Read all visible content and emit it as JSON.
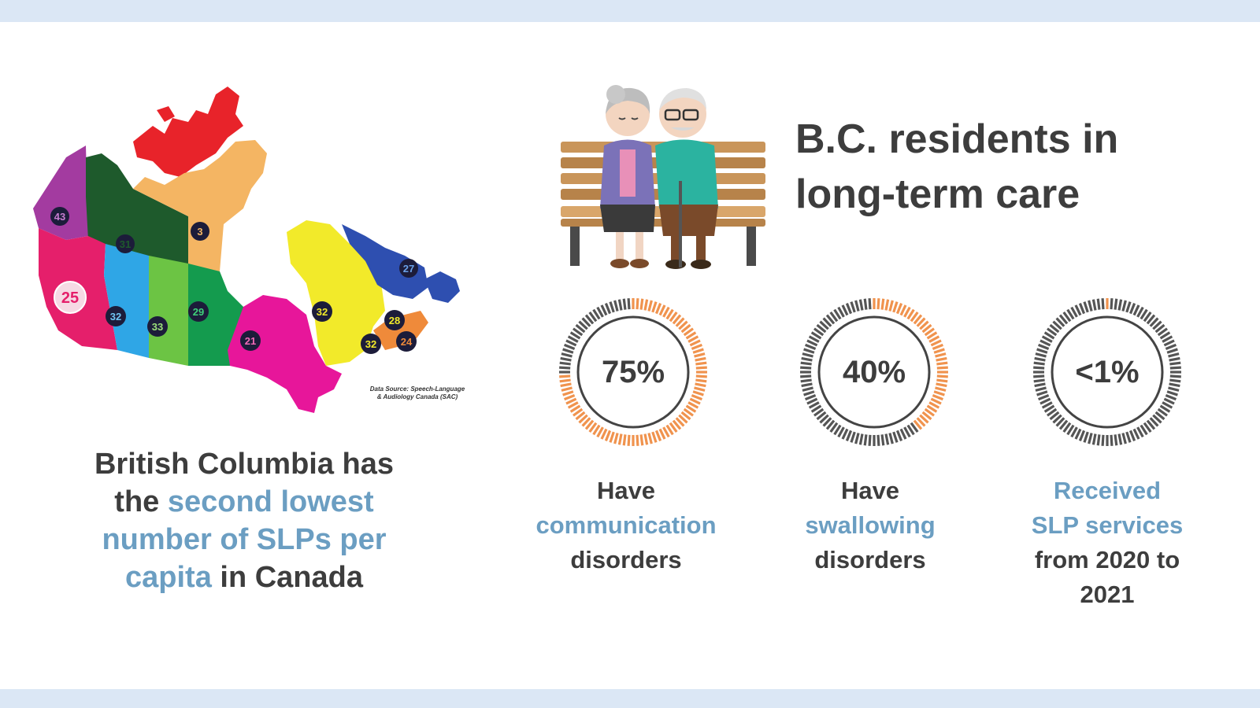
{
  "colors": {
    "band": "#dbe7f5",
    "accent_blue": "#6b9ec2",
    "ring_orange": "#f0934e",
    "ring_gray": "#555555",
    "text": "#3d3d3d"
  },
  "map": {
    "labels": [
      "43",
      "31",
      "3",
      "27",
      "25",
      "32",
      "33",
      "29",
      "21",
      "32",
      "28",
      "32",
      "24"
    ],
    "source_line1": "Data Source: Speech-Language",
    "source_line2": "& Audiology Canada (SAC)"
  },
  "bc_statement": {
    "part1": "British Columbia has",
    "part2": "the ",
    "highlight1": "second lowest",
    "highlight2": "number of SLPs per",
    "highlight3": "capita",
    "part3": " in Canada"
  },
  "heading": {
    "line1": "B.C. residents in",
    "line2": "long-term care"
  },
  "stats": [
    {
      "value_text": "75%",
      "fraction": 0.75,
      "line1": "Have",
      "highlight": "communication",
      "line3": "disorders"
    },
    {
      "value_text": "40%",
      "fraction": 0.4,
      "line1": "Have",
      "highlight": "swallowing",
      "line3": "disorders"
    },
    {
      "value_text": "<1%",
      "fraction": 0.01,
      "highlight1": "Received",
      "highlight2": "SLP services",
      "line3": "from 2020 to",
      "line4": "2021"
    }
  ]
}
